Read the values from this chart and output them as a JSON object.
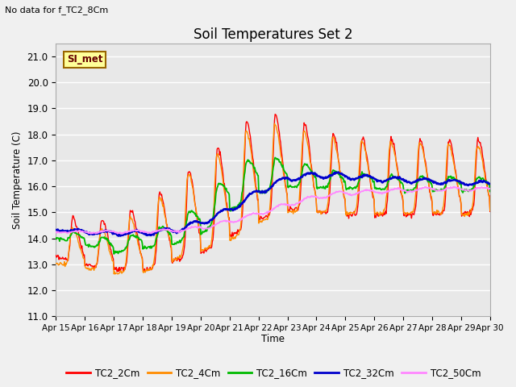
{
  "title": "Soil Temperatures Set 2",
  "subtitle": "No data for f_TC2_8Cm",
  "ylabel": "Soil Temperature (C)",
  "xlabel": "Time",
  "ylim": [
    11.0,
    21.5
  ],
  "yticks": [
    11.0,
    12.0,
    13.0,
    14.0,
    15.0,
    16.0,
    17.0,
    18.0,
    19.0,
    20.0,
    21.0
  ],
  "fig_bg": "#f0f0f0",
  "plot_bg": "#e8e8e8",
  "grid_color": "#ffffff",
  "series_colors": {
    "TC2_2Cm": "#ff0000",
    "TC2_4Cm": "#ff8c00",
    "TC2_16Cm": "#00bb00",
    "TC2_32Cm": "#0000cc",
    "TC2_50Cm": "#ff88ff"
  },
  "annotation_box": {
    "text": "SI_met",
    "bg": "#ffff99",
    "border": "#996600",
    "text_color": "#660000"
  },
  "x_tick_labels": [
    "Apr 15",
    "Apr 16",
    "Apr 17",
    "Apr 18",
    "Apr 19",
    "Apr 20",
    "Apr 21",
    "Apr 22",
    "Apr 23",
    "Apr 24",
    "Apr 25",
    "Apr 26",
    "Apr 27",
    "Apr 28",
    "Apr 29",
    "Apr 30"
  ]
}
